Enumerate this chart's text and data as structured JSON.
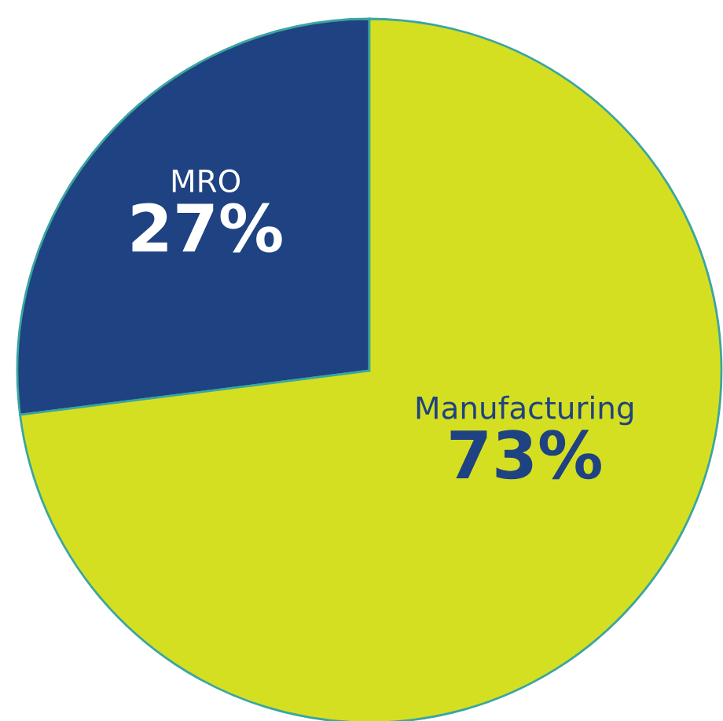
{
  "chart_data": {
    "type": "pie",
    "categories": [
      "MRO",
      "Manufacturing"
    ],
    "values": [
      27,
      73
    ],
    "colors": [
      "#1f4282",
      "#d5df21"
    ],
    "value_labels": [
      "27%",
      "73%"
    ],
    "legend": false
  }
}
